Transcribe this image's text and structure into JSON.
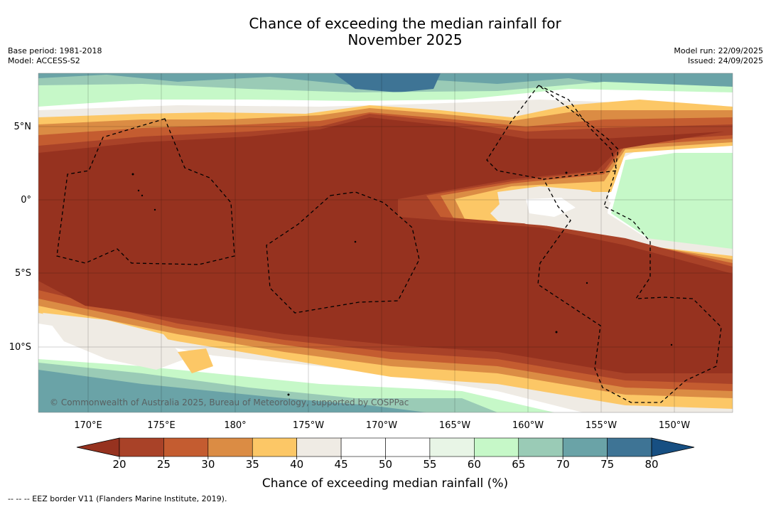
{
  "title_line1": "Chance of exceeding the median rainfall for",
  "title_line2": "November 2025",
  "base_period": "Base period: 1981-2018",
  "model": "Model: ACCESS-S2",
  "model_run": "Model run: 22/09/2025",
  "issued": "Issued: 24/09/2025",
  "copyright": "© Commonwealth of Australia 2025, Bureau of Meteorology, supported by COSPPac",
  "footer_legend": "--  --  -- EEZ border V11 (Flanders Marine Institute, 2019).",
  "lon_labels": [
    "170°E",
    "175°E",
    "180°",
    "175°W",
    "170°W",
    "165°W",
    "160°W",
    "155°W",
    "150°W"
  ],
  "lat_labels": [
    "5°N",
    "0°",
    "5°S",
    "10°S"
  ],
  "colorbar": {
    "title": "Chance of exceeding median rainfall (%)",
    "ticks": [
      "20",
      "25",
      "30",
      "35",
      "40",
      "45",
      "50",
      "55",
      "60",
      "65",
      "70",
      "75",
      "80"
    ],
    "under_color": "#96321f",
    "over_color": "#174f82",
    "colors": [
      "#a94228",
      "#c45c30",
      "#db8c44",
      "#fcc766",
      "#efebe4",
      "#ffffff",
      "#ffffff",
      "#e8f5e6",
      "#c6f8c8",
      "#9acbb6",
      "#6aa3a7",
      "#3e7495"
    ]
  }
}
